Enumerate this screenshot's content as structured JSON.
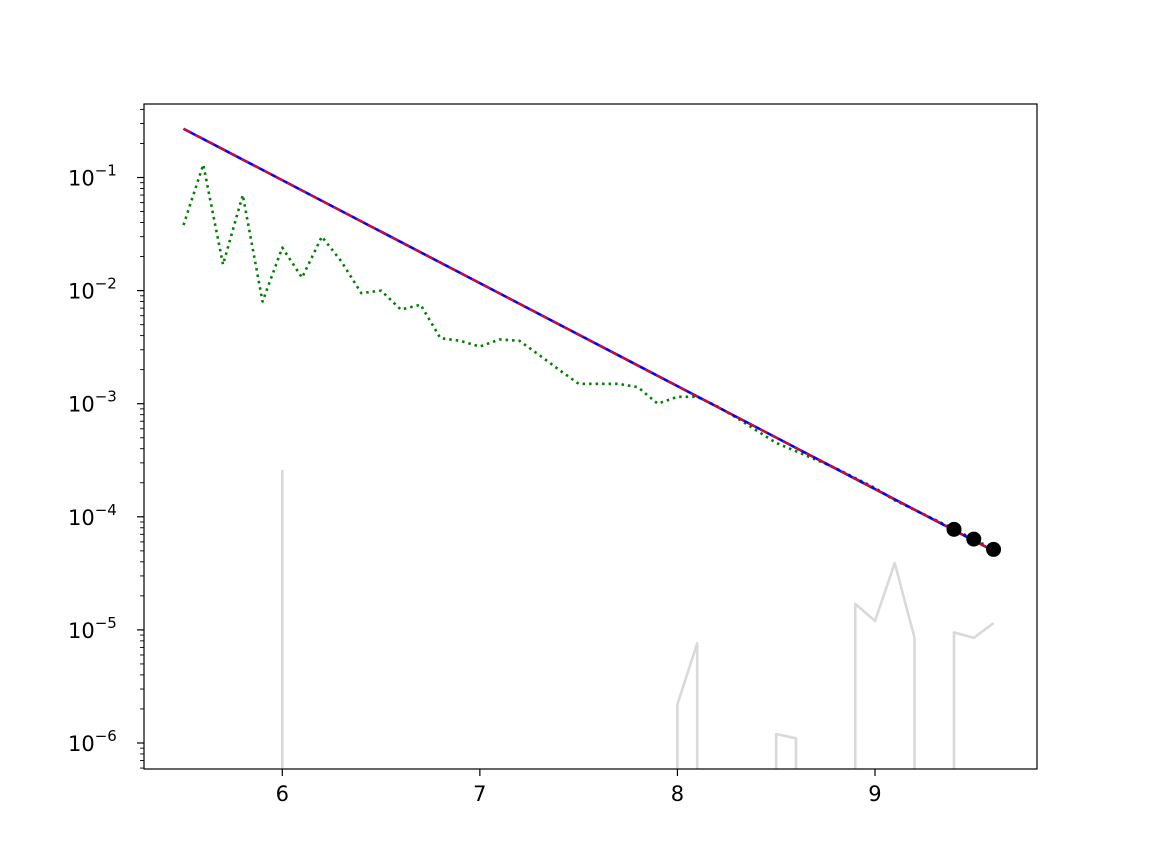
{
  "chart_data": {
    "type": "line",
    "title": "",
    "xlabel": "",
    "ylabel": "",
    "xlim": [
      5.3,
      9.82
    ],
    "ylim_log10": [
      -6.23,
      -0.35
    ],
    "yscale": "log",
    "grid": false,
    "legend": "none",
    "x_ticks": [
      {
        "value": 6,
        "label": "6"
      },
      {
        "value": 7,
        "label": "7"
      },
      {
        "value": 8,
        "label": "8"
      },
      {
        "value": 9,
        "label": "9"
      }
    ],
    "y_ticks": [
      {
        "exp": -1,
        "base": "10",
        "sup": "−1"
      },
      {
        "exp": -2,
        "base": "10",
        "sup": "−2"
      },
      {
        "exp": -3,
        "base": "10",
        "sup": "−3"
      },
      {
        "exp": -4,
        "base": "10",
        "sup": "−4"
      },
      {
        "exp": -5,
        "base": "10",
        "sup": "−5"
      },
      {
        "exp": -6,
        "base": "10",
        "sup": "−6"
      }
    ],
    "series": [
      {
        "style": "solid",
        "color": "#0000ff",
        "x": [
          5.5,
          9.6
        ],
        "y": [
          0.27,
          5e-05
        ]
      },
      {
        "style": "dashed",
        "color": "#ff0000",
        "x": [
          5.5,
          9.6
        ],
        "y": [
          0.27,
          5e-05
        ]
      },
      {
        "style": "dotted",
        "color": "#008000",
        "x": [
          5.5,
          5.6,
          5.7,
          5.8,
          5.9,
          6.0,
          6.1,
          6.2,
          6.3,
          6.4,
          6.5,
          6.6,
          6.7,
          6.8,
          6.9,
          7.0,
          7.1,
          7.2,
          7.3,
          7.4,
          7.5,
          7.6,
          7.7,
          7.8,
          7.9,
          8.0,
          8.1,
          8.2,
          8.3,
          8.4,
          8.5,
          8.6,
          8.7,
          8.8,
          8.9,
          9.0,
          9.1,
          9.2,
          9.3,
          9.4,
          9.5,
          9.6
        ],
        "y": [
          0.038,
          0.13,
          0.017,
          0.07,
          0.008,
          0.024,
          0.013,
          0.03,
          0.018,
          0.0095,
          0.01,
          0.0068,
          0.0075,
          0.0038,
          0.0036,
          0.0032,
          0.0037,
          0.0036,
          0.0027,
          0.002,
          0.0015,
          0.0015,
          0.0015,
          0.0014,
          0.001,
          0.00115,
          0.00115,
          0.00095,
          0.00075,
          0.00058,
          0.00045,
          0.00038,
          0.00032,
          0.00027,
          0.00022,
          0.00018,
          0.00014,
          0.000115,
          9.5e-05,
          7.8e-05,
          6.3e-05,
          5.2e-05
        ]
      },
      {
        "style": "solid",
        "color": "#d9d9d9",
        "segments": [
          {
            "x": [
              6.0,
              6.0
            ],
            "y": [
              4e-07,
              0.00026
            ]
          },
          {
            "x": [
              8.0,
              8.0,
              8.1,
              8.1
            ],
            "y": [
              4e-07,
              2.2e-06,
              7.6e-06,
              4e-07
            ]
          },
          {
            "x": [
              8.5,
              8.5,
              8.6,
              8.6
            ],
            "y": [
              4e-07,
              1.2e-06,
              1.1e-06,
              4e-07
            ]
          },
          {
            "x": [
              8.9,
              8.9,
              9.0,
              9.1,
              9.2,
              9.2
            ],
            "y": [
              4e-07,
              1.7e-05,
              1.2e-05,
              3.9e-05,
              8.5e-06,
              4e-07
            ]
          },
          {
            "x": [
              9.4,
              9.4,
              9.5,
              9.6
            ],
            "y": [
              4e-07,
              9.5e-06,
              8.5e-06,
              1.15e-05
            ]
          }
        ]
      }
    ],
    "markers": {
      "color": "#000000",
      "x": [
        9.4,
        9.5,
        9.6
      ],
      "y": [
        7.75e-05,
        6.35e-05,
        5.15e-05
      ]
    }
  }
}
